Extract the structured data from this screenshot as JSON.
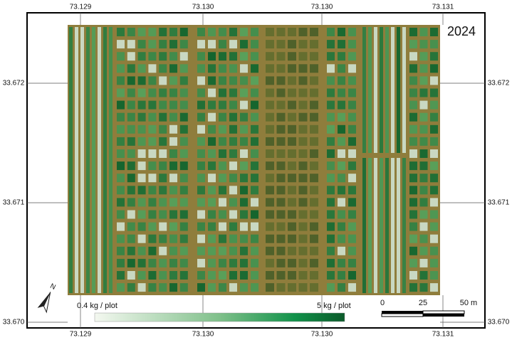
{
  "map": {
    "year": "2024",
    "top_labels": [
      "73.129",
      "73.130",
      "73.130",
      "73.131"
    ],
    "bottom_labels": [
      "73.129",
      "73.130",
      "73.130",
      "73.131"
    ],
    "left_labels": [
      "33.672",
      "33.671",
      "33.670"
    ],
    "right_labels": [
      "33.672",
      "33.671",
      "33.670"
    ],
    "legend": {
      "min_label": "0.4 kg / plot",
      "max_label": "5 kg / plot"
    },
    "scale_bar": {
      "labels": [
        "0",
        "25",
        "50 m"
      ]
    },
    "north": "N"
  }
}
